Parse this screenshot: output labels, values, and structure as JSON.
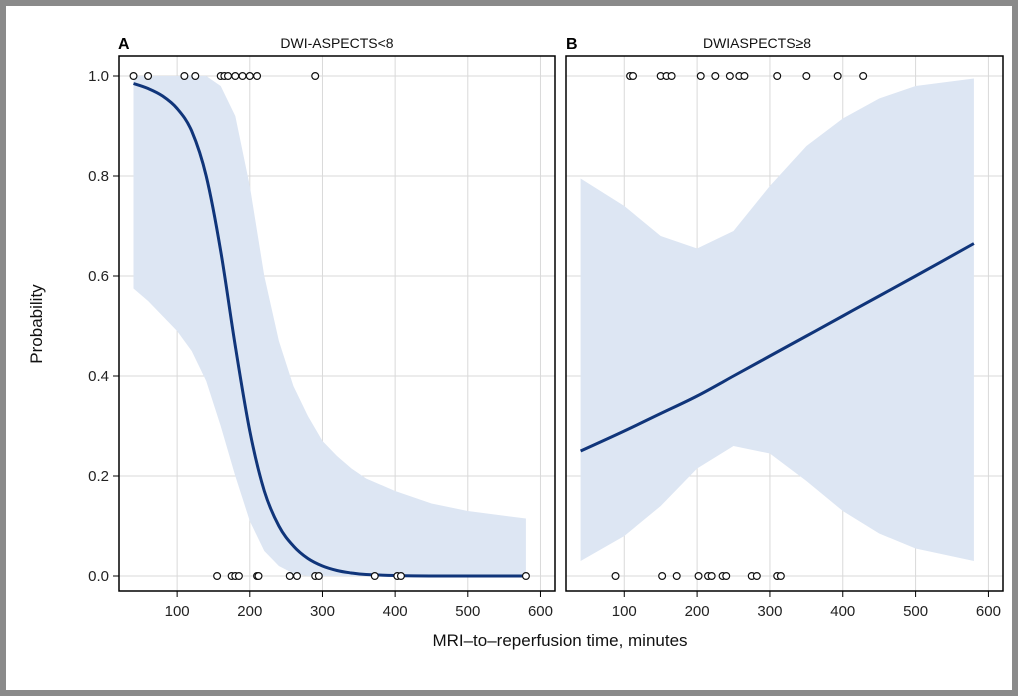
{
  "chart_data": {
    "type": "line",
    "xlabel": "MRI–to–reperfusion time, minutes",
    "ylabel": "Probability",
    "xlim": [
      20,
      620
    ],
    "ylim": [
      -0.03,
      1.04
    ],
    "xticks": [
      100,
      200,
      300,
      400,
      500,
      600
    ],
    "yticks": [
      "0.0",
      "0.2",
      "0.4",
      "0.6",
      "0.8",
      "1.0"
    ],
    "grid": true,
    "panels": [
      {
        "label": "A",
        "title": "DWI-ASPECTS<8",
        "curve_x": [
          40,
          60,
          80,
          100,
          120,
          140,
          160,
          180,
          200,
          220,
          240,
          260,
          280,
          300,
          320,
          340,
          360,
          400,
          450,
          500,
          580
        ],
        "curve_y": [
          0.985,
          0.975,
          0.96,
          0.935,
          0.89,
          0.8,
          0.65,
          0.46,
          0.29,
          0.17,
          0.1,
          0.06,
          0.035,
          0.02,
          0.011,
          0.006,
          0.003,
          0.001,
          0.0,
          0.0,
          0.0
        ],
        "upper": [
          1.0,
          1.0,
          1.0,
          1.0,
          1.0,
          1.0,
          0.98,
          0.92,
          0.78,
          0.6,
          0.47,
          0.38,
          0.32,
          0.27,
          0.24,
          0.215,
          0.195,
          0.17,
          0.145,
          0.13,
          0.115
        ],
        "lower": [
          0.575,
          0.55,
          0.52,
          0.49,
          0.45,
          0.39,
          0.3,
          0.2,
          0.11,
          0.05,
          0.02,
          0.005,
          0.0,
          0.0,
          0.0,
          0.0,
          0.0,
          0.0,
          0.0,
          0.0,
          0.0
        ],
        "points_top": [
          40,
          60,
          110,
          125,
          160,
          165,
          170,
          180,
          190,
          200,
          210,
          290
        ],
        "points_bottom": [
          155,
          175,
          180,
          185,
          210,
          212,
          255,
          265,
          290,
          295,
          372,
          403,
          408,
          580
        ]
      },
      {
        "label": "B",
        "title": "DWIASPECTS≥8",
        "curve_x": [
          40,
          100,
          150,
          200,
          250,
          300,
          350,
          400,
          450,
          500,
          580
        ],
        "curve_y": [
          0.25,
          0.29,
          0.325,
          0.36,
          0.4,
          0.44,
          0.48,
          0.52,
          0.56,
          0.6,
          0.665
        ],
        "upper": [
          0.795,
          0.74,
          0.68,
          0.655,
          0.69,
          0.78,
          0.86,
          0.915,
          0.955,
          0.98,
          0.995
        ],
        "lower": [
          0.03,
          0.08,
          0.14,
          0.215,
          0.26,
          0.245,
          0.19,
          0.13,
          0.085,
          0.055,
          0.03
        ],
        "points_top": [
          108,
          112,
          150,
          158,
          165,
          205,
          225,
          245,
          258,
          265,
          310,
          350,
          393,
          428
        ],
        "points_bottom": [
          88,
          152,
          172,
          202,
          215,
          220,
          235,
          240,
          275,
          282,
          310,
          315
        ]
      }
    ]
  },
  "colors": {
    "line": "#10357a",
    "band": "#dde6f3",
    "grid": "#d9d9d9",
    "frame": "#000000"
  }
}
